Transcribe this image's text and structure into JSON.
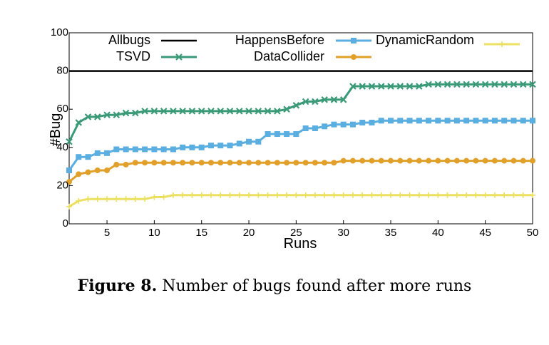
{
  "chart_data": {
    "type": "line",
    "xlabel": "Runs",
    "ylabel": "#Bug",
    "xlim": [
      1,
      50
    ],
    "ylim": [
      0,
      100
    ],
    "xticks": [
      5,
      10,
      15,
      20,
      25,
      30,
      35,
      40,
      45,
      50
    ],
    "yticks": [
      0,
      20,
      40,
      60,
      80,
      100
    ],
    "grid": false,
    "legend_position": "top",
    "series": [
      {
        "name": "Allbugs",
        "color": "#000000",
        "marker": "none",
        "x": [
          1,
          50
        ],
        "y": [
          80,
          80
        ]
      },
      {
        "name": "TSVD",
        "color": "#3a9a78",
        "marker": "x",
        "x": [
          1,
          2,
          3,
          4,
          5,
          6,
          7,
          8,
          9,
          10,
          11,
          12,
          13,
          14,
          15,
          16,
          17,
          18,
          19,
          20,
          21,
          22,
          23,
          24,
          25,
          26,
          27,
          28,
          29,
          30,
          31,
          32,
          33,
          34,
          35,
          36,
          37,
          38,
          39,
          40,
          41,
          42,
          43,
          44,
          45,
          46,
          47,
          48,
          49,
          50
        ],
        "y": [
          43,
          53,
          56,
          56,
          57,
          57,
          58,
          58,
          59,
          59,
          59,
          59,
          59,
          59,
          59,
          59,
          59,
          59,
          59,
          59,
          59,
          59,
          59,
          60,
          62,
          64,
          64,
          65,
          65,
          65,
          72,
          72,
          72,
          72,
          72,
          72,
          72,
          72,
          73,
          73,
          73,
          73,
          73,
          73,
          73,
          73,
          73,
          73,
          73,
          73
        ]
      },
      {
        "name": "HappensBefore",
        "color": "#5aaee0",
        "marker": "square",
        "x": [
          1,
          2,
          3,
          4,
          5,
          6,
          7,
          8,
          9,
          10,
          11,
          12,
          13,
          14,
          15,
          16,
          17,
          18,
          19,
          20,
          21,
          22,
          23,
          24,
          25,
          26,
          27,
          28,
          29,
          30,
          31,
          32,
          33,
          34,
          35,
          36,
          37,
          38,
          39,
          40,
          41,
          42,
          43,
          44,
          45,
          46,
          47,
          48,
          49,
          50
        ],
        "y": [
          28,
          35,
          35,
          37,
          37,
          39,
          39,
          39,
          39,
          39,
          39,
          39,
          40,
          40,
          40,
          41,
          41,
          41,
          42,
          43,
          43,
          47,
          47,
          47,
          47,
          50,
          50,
          51,
          52,
          52,
          52,
          53,
          53,
          54,
          54,
          54,
          54,
          54,
          54,
          54,
          54,
          54,
          54,
          54,
          54,
          54,
          54,
          54,
          54,
          54
        ]
      },
      {
        "name": "DataCollider",
        "color": "#e0a02a",
        "marker": "circle",
        "x": [
          1,
          2,
          3,
          4,
          5,
          6,
          7,
          8,
          9,
          10,
          11,
          12,
          13,
          14,
          15,
          16,
          17,
          18,
          19,
          20,
          21,
          22,
          23,
          24,
          25,
          26,
          27,
          28,
          29,
          30,
          31,
          32,
          33,
          34,
          35,
          36,
          37,
          38,
          39,
          40,
          41,
          42,
          43,
          44,
          45,
          46,
          47,
          48,
          49,
          50
        ],
        "y": [
          22,
          26,
          27,
          28,
          28,
          31,
          31,
          32,
          32,
          32,
          32,
          32,
          32,
          32,
          32,
          32,
          32,
          32,
          32,
          32,
          32,
          32,
          32,
          32,
          32,
          32,
          32,
          32,
          32,
          33,
          33,
          33,
          33,
          33,
          33,
          33,
          33,
          33,
          33,
          33,
          33,
          33,
          33,
          33,
          33,
          33,
          33,
          33,
          33,
          33
        ]
      },
      {
        "name": "DynamicRandom",
        "color": "#ece060",
        "marker": "plus",
        "x": [
          1,
          2,
          3,
          4,
          5,
          6,
          7,
          8,
          9,
          10,
          11,
          12,
          13,
          14,
          15,
          16,
          17,
          18,
          19,
          20,
          21,
          22,
          23,
          24,
          25,
          26,
          27,
          28,
          29,
          30,
          31,
          32,
          33,
          34,
          35,
          36,
          37,
          38,
          39,
          40,
          41,
          42,
          43,
          44,
          45,
          46,
          47,
          48,
          49,
          50
        ],
        "y": [
          9,
          12,
          13,
          13,
          13,
          13,
          13,
          13,
          13,
          14,
          14,
          15,
          15,
          15,
          15,
          15,
          15,
          15,
          15,
          15,
          15,
          15,
          15,
          15,
          15,
          15,
          15,
          15,
          15,
          15,
          15,
          15,
          15,
          15,
          15,
          15,
          15,
          15,
          15,
          15,
          15,
          15,
          15,
          15,
          15,
          15,
          15,
          15,
          15,
          15
        ]
      }
    ]
  },
  "caption": {
    "label": "Figure 8.",
    "text": "Number of bugs found after more runs"
  }
}
